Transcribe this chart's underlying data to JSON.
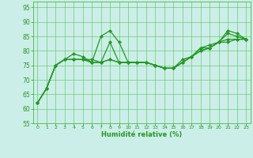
{
  "title": "",
  "xlabel": "Humidité relative (%)",
  "ylabel": "",
  "xlim": [
    -0.5,
    23.5
  ],
  "ylim": [
    55,
    97
  ],
  "yticks": [
    55,
    60,
    65,
    70,
    75,
    80,
    85,
    90,
    95
  ],
  "xticks": [
    0,
    1,
    2,
    3,
    4,
    5,
    6,
    7,
    8,
    9,
    10,
    11,
    12,
    13,
    14,
    15,
    16,
    17,
    18,
    19,
    20,
    21,
    22,
    23
  ],
  "background_color": "#cceee8",
  "grid_color": "#44bb44",
  "line_color": "#229922",
  "series": [
    [
      62,
      67,
      75,
      77,
      79,
      78,
      76,
      85,
      87,
      83,
      76,
      76,
      76,
      75,
      74,
      74,
      76,
      78,
      81,
      81,
      83,
      87,
      86,
      84
    ],
    [
      62,
      67,
      75,
      77,
      77,
      77,
      77,
      76,
      83,
      76,
      76,
      76,
      76,
      75,
      74,
      74,
      77,
      78,
      81,
      82,
      83,
      86,
      85,
      84
    ],
    [
      62,
      67,
      75,
      77,
      77,
      77,
      76,
      76,
      77,
      76,
      76,
      76,
      76,
      75,
      74,
      74,
      76,
      78,
      80,
      81,
      83,
      84,
      84,
      84
    ],
    [
      62,
      67,
      75,
      77,
      77,
      77,
      76,
      76,
      77,
      76,
      76,
      76,
      76,
      75,
      74,
      74,
      76,
      78,
      80,
      81,
      83,
      83,
      84,
      84
    ]
  ],
  "marker": "D",
  "markersize": 2.5,
  "linewidth": 0.9
}
